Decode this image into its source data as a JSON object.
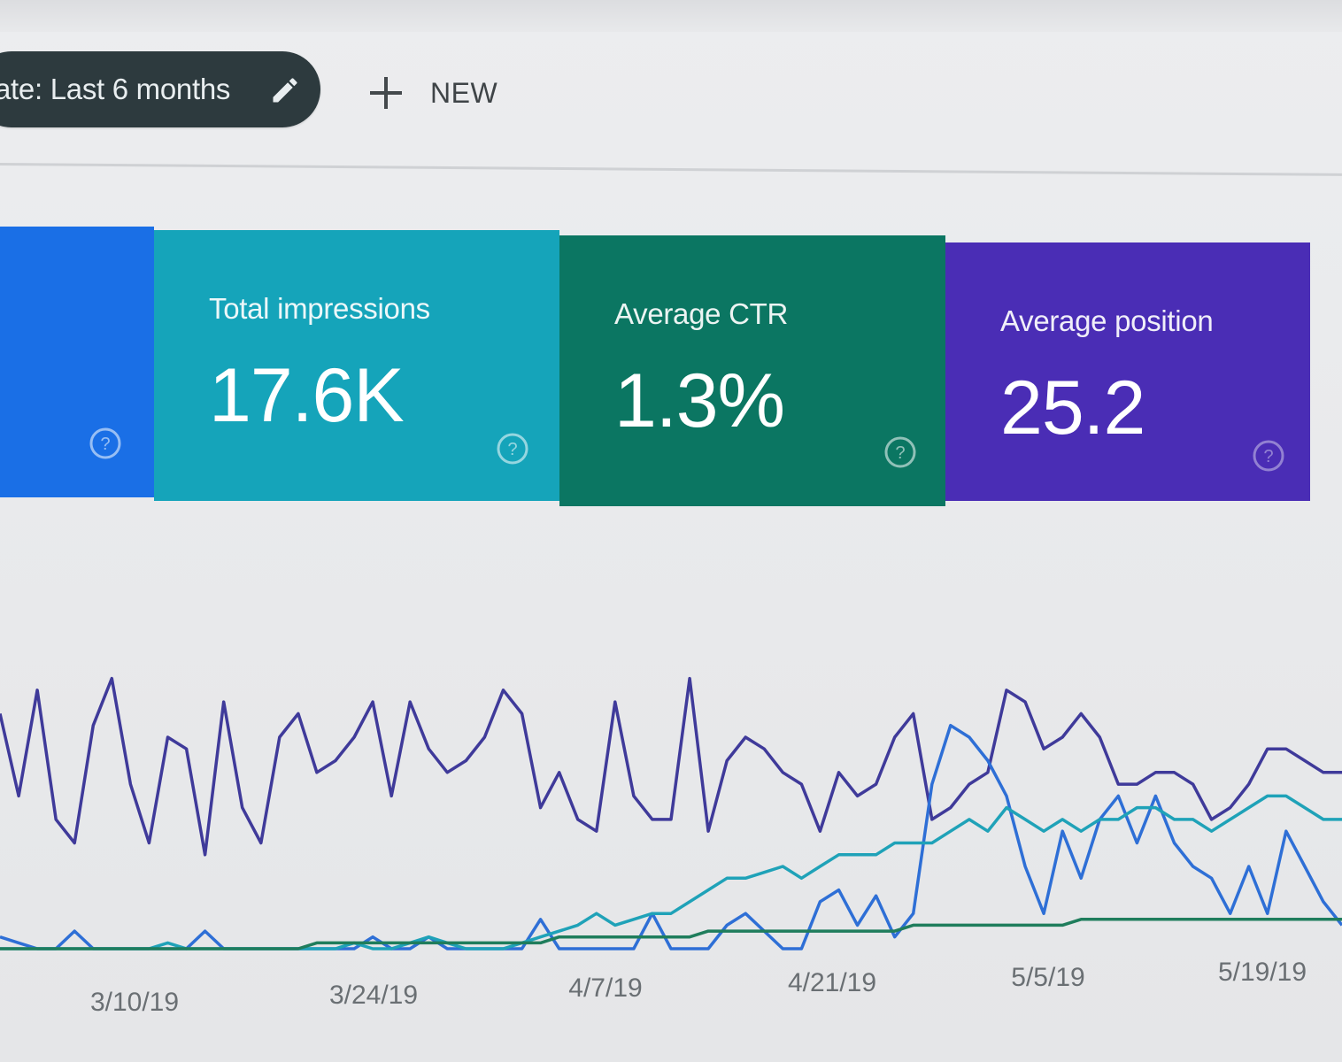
{
  "toolbar": {
    "filter_chip_label": "ate: Last 6 months",
    "filter_edit_icon": "pencil-icon",
    "new_button_icon": "plus-icon",
    "new_button_label": "NEW"
  },
  "cards": [
    {
      "label": "",
      "value": "",
      "color": "#1a6fe6",
      "help_icon": "question-circle-icon"
    },
    {
      "label": "Total impressions",
      "value": "17.6K",
      "color": "#14a3b9",
      "help_icon": "question-circle-icon"
    },
    {
      "label": "Average CTR",
      "value": "1.3%",
      "color": "#0c7560",
      "help_icon": "question-circle-icon"
    },
    {
      "label": "Average position",
      "value": "25.2",
      "color": "#4a2cb4",
      "help_icon": "question-circle-icon"
    }
  ],
  "chart_data": {
    "type": "line",
    "x_tick_labels": [
      "3/10/19",
      "3/24/19",
      "4/7/19",
      "4/21/19",
      "5/5/19",
      "5/19/19"
    ],
    "grid": false,
    "series": [
      {
        "color": "#3f3a9a",
        "values": [
          40,
          26,
          44,
          22,
          18,
          38,
          46,
          28,
          18,
          36,
          34,
          16,
          42,
          24,
          18,
          36,
          40,
          30,
          32,
          36,
          42,
          26,
          42,
          34,
          30,
          32,
          36,
          44,
          40,
          24,
          30,
          22,
          20,
          42,
          26,
          22,
          22,
          46,
          20,
          32,
          36,
          34,
          30,
          28,
          20,
          30,
          26,
          28,
          36,
          40,
          22,
          24,
          28,
          30,
          44,
          42,
          34,
          36,
          40,
          36,
          28,
          28,
          30,
          30,
          28,
          22,
          24,
          28,
          34,
          34,
          32,
          30,
          30
        ]
      },
      {
        "color": "#2e6fd6",
        "values": [
          2,
          1,
          0,
          0,
          3,
          0,
          0,
          0,
          0,
          0,
          0,
          3,
          0,
          0,
          0,
          0,
          0,
          0,
          0,
          0,
          2,
          0,
          0,
          2,
          0,
          0,
          0,
          0,
          0,
          5,
          0,
          0,
          0,
          0,
          0,
          6,
          0,
          0,
          0,
          4,
          6,
          3,
          0,
          0,
          8,
          10,
          4,
          9,
          2,
          6,
          28,
          38,
          36,
          32,
          26,
          14,
          6,
          20,
          12,
          22,
          26,
          18,
          26,
          18,
          14,
          12,
          6,
          14,
          6,
          20,
          14,
          8,
          4
        ]
      },
      {
        "color": "#1fa2b8",
        "values": [
          0,
          0,
          0,
          0,
          0,
          0,
          0,
          0,
          0,
          1,
          0,
          0,
          0,
          0,
          0,
          0,
          0,
          0,
          0,
          1,
          0,
          0,
          1,
          2,
          1,
          0,
          0,
          0,
          1,
          2,
          3,
          4,
          6,
          4,
          5,
          6,
          6,
          8,
          10,
          12,
          12,
          13,
          14,
          12,
          14,
          16,
          16,
          16,
          18,
          18,
          18,
          20,
          22,
          20,
          24,
          22,
          20,
          22,
          20,
          22,
          22,
          24,
          24,
          22,
          22,
          20,
          22,
          24,
          26,
          26,
          24,
          22,
          22
        ]
      },
      {
        "color": "#1f7d5c",
        "values": [
          0,
          0,
          0,
          0,
          0,
          0,
          0,
          0,
          0,
          0,
          0,
          0,
          0,
          0,
          0,
          0,
          0,
          1,
          1,
          1,
          1,
          1,
          1,
          1,
          1,
          1,
          1,
          1,
          1,
          1,
          2,
          2,
          2,
          2,
          2,
          2,
          2,
          2,
          3,
          3,
          3,
          3,
          3,
          3,
          3,
          3,
          3,
          3,
          3,
          4,
          4,
          4,
          4,
          4,
          4,
          4,
          4,
          4,
          5,
          5,
          5,
          5,
          5,
          5,
          5,
          5,
          5,
          5,
          5,
          5,
          5,
          5,
          5
        ]
      }
    ]
  }
}
